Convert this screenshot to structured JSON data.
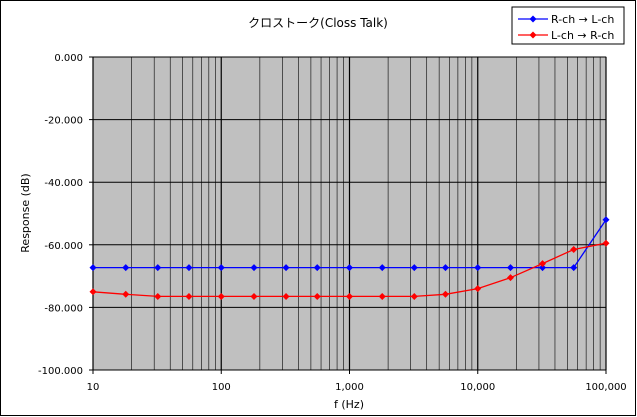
{
  "chart_data": {
    "type": "line",
    "title": "クロストーク(Closs Talk)",
    "xlabel": "f (Hz)",
    "ylabel": "Response (dB)",
    "x_scale": "log",
    "xlim": [
      10,
      100000
    ],
    "ylim": [
      -100,
      0
    ],
    "x_ticks": [
      10,
      100,
      1000,
      10000,
      100000
    ],
    "x_tick_labels": [
      "10",
      "100",
      "1,000",
      "10,000",
      "100,000"
    ],
    "y_ticks": [
      0,
      -20,
      -40,
      -60,
      -80,
      -100
    ],
    "y_tick_labels": [
      "0.000",
      "-20.000",
      "-40.000",
      "-60.000",
      "-80.000",
      "-100.000"
    ],
    "grid": true,
    "plot_background": "#c0c0c0",
    "legend_position": "top-right",
    "x": [
      10,
      18,
      32,
      56,
      100,
      180,
      320,
      560,
      1000,
      1800,
      3200,
      5600,
      10000,
      18000,
      32000,
      56000,
      100000
    ],
    "series": [
      {
        "name": "R-ch → L-ch",
        "color": "#0000ff",
        "values": [
          -67.3,
          -67.3,
          -67.3,
          -67.3,
          -67.3,
          -67.3,
          -67.3,
          -67.3,
          -67.3,
          -67.3,
          -67.3,
          -67.3,
          -67.3,
          -67.3,
          -67.3,
          -67.3,
          -52.0
        ]
      },
      {
        "name": "L-ch → R-ch",
        "color": "#ff0000",
        "values": [
          -75.0,
          -75.8,
          -76.5,
          -76.5,
          -76.5,
          -76.5,
          -76.5,
          -76.5,
          -76.5,
          -76.5,
          -76.5,
          -75.8,
          -74.0,
          -70.5,
          -66.0,
          -61.5,
          -59.5
        ]
      }
    ]
  }
}
